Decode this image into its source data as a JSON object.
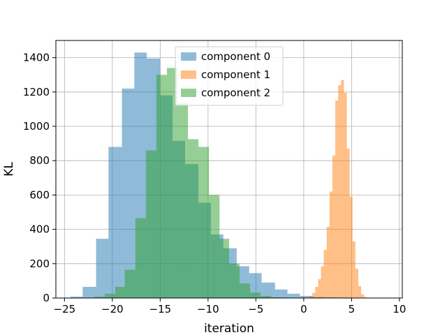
{
  "chart_data": {
    "type": "bar",
    "subtype": "overlaid-histogram",
    "xlabel": "iteration",
    "ylabel": "KL",
    "xlim": [
      -25.9,
      10.3
    ],
    "ylim": [
      0,
      1500
    ],
    "xticks": [
      -25,
      -20,
      -15,
      -10,
      -5,
      0,
      5,
      10
    ],
    "yticks": [
      0,
      200,
      400,
      600,
      800,
      1000,
      1200,
      1400
    ],
    "grid": true,
    "legend_position": "upper-center",
    "bar_alpha": 0.5,
    "series": [
      {
        "name": "component 0",
        "color": "#1f77b4",
        "bins": [
          {
            "x0": -24.4,
            "x1": -23.1,
            "count": 8
          },
          {
            "x0": -23.1,
            "x1": -21.7,
            "count": 65
          },
          {
            "x0": -21.7,
            "x1": -20.4,
            "count": 345
          },
          {
            "x0": -20.4,
            "x1": -19.0,
            "count": 880
          },
          {
            "x0": -19.0,
            "x1": -17.7,
            "count": 1220
          },
          {
            "x0": -17.7,
            "x1": -16.4,
            "count": 1430
          },
          {
            "x0": -16.4,
            "x1": -15.0,
            "count": 1395
          },
          {
            "x0": -15.0,
            "x1": -13.7,
            "count": 1180
          },
          {
            "x0": -13.7,
            "x1": -12.4,
            "count": 915
          },
          {
            "x0": -12.4,
            "x1": -11.0,
            "count": 780
          },
          {
            "x0": -11.0,
            "x1": -9.7,
            "count": 555
          },
          {
            "x0": -9.7,
            "x1": -8.4,
            "count": 370
          },
          {
            "x0": -8.4,
            "x1": -7.0,
            "count": 290
          },
          {
            "x0": -7.0,
            "x1": -5.7,
            "count": 185
          },
          {
            "x0": -5.7,
            "x1": -4.4,
            "count": 145
          },
          {
            "x0": -4.4,
            "x1": -3.0,
            "count": 90
          },
          {
            "x0": -3.0,
            "x1": -1.7,
            "count": 50
          },
          {
            "x0": -1.7,
            "x1": -0.4,
            "count": 25
          },
          {
            "x0": -0.4,
            "x1": 1.0,
            "count": 12
          },
          {
            "x0": 1.0,
            "x1": 2.3,
            "count": 6
          },
          {
            "x0": 2.3,
            "x1": 3.6,
            "count": 4
          },
          {
            "x0": 3.6,
            "x1": 5.0,
            "count": 3
          },
          {
            "x0": 5.0,
            "x1": 6.3,
            "count": 2
          },
          {
            "x0": 6.3,
            "x1": 7.6,
            "count": 1
          }
        ]
      },
      {
        "name": "component 1",
        "color": "#ff7f0e",
        "bins": [
          {
            "x0": 0.3,
            "x1": 0.6,
            "count": 4
          },
          {
            "x0": 0.6,
            "x1": 0.9,
            "count": 12
          },
          {
            "x0": 0.9,
            "x1": 1.2,
            "count": 30
          },
          {
            "x0": 1.2,
            "x1": 1.5,
            "count": 65
          },
          {
            "x0": 1.5,
            "x1": 1.8,
            "count": 110
          },
          {
            "x0": 1.8,
            "x1": 2.1,
            "count": 185
          },
          {
            "x0": 2.1,
            "x1": 2.4,
            "count": 280
          },
          {
            "x0": 2.4,
            "x1": 2.7,
            "count": 415
          },
          {
            "x0": 2.7,
            "x1": 3.0,
            "count": 620
          },
          {
            "x0": 3.0,
            "x1": 3.3,
            "count": 830
          },
          {
            "x0": 3.3,
            "x1": 3.6,
            "count": 1150
          },
          {
            "x0": 3.6,
            "x1": 3.9,
            "count": 1240
          },
          {
            "x0": 3.9,
            "x1": 4.2,
            "count": 1270
          },
          {
            "x0": 4.2,
            "x1": 4.5,
            "count": 1195
          },
          {
            "x0": 4.5,
            "x1": 4.8,
            "count": 870
          },
          {
            "x0": 4.8,
            "x1": 5.1,
            "count": 590
          },
          {
            "x0": 5.1,
            "x1": 5.4,
            "count": 330
          },
          {
            "x0": 5.4,
            "x1": 5.7,
            "count": 170
          },
          {
            "x0": 5.7,
            "x1": 6.0,
            "count": 70
          },
          {
            "x0": 6.0,
            "x1": 6.3,
            "count": 22
          },
          {
            "x0": 6.3,
            "x1": 6.6,
            "count": 6
          }
        ]
      },
      {
        "name": "component 2",
        "color": "#2ca02c",
        "bins": [
          {
            "x0": -21.9,
            "x1": -20.8,
            "count": 8
          },
          {
            "x0": -20.8,
            "x1": -19.7,
            "count": 25
          },
          {
            "x0": -19.7,
            "x1": -18.7,
            "count": 65
          },
          {
            "x0": -18.7,
            "x1": -17.6,
            "count": 165
          },
          {
            "x0": -17.6,
            "x1": -16.5,
            "count": 465
          },
          {
            "x0": -16.5,
            "x1": -15.4,
            "count": 860
          },
          {
            "x0": -15.4,
            "x1": -14.3,
            "count": 1300
          },
          {
            "x0": -14.3,
            "x1": -13.2,
            "count": 1340
          },
          {
            "x0": -13.2,
            "x1": -12.1,
            "count": 1135
          },
          {
            "x0": -12.1,
            "x1": -11.0,
            "count": 925
          },
          {
            "x0": -11.0,
            "x1": -9.9,
            "count": 880
          },
          {
            "x0": -9.9,
            "x1": -8.8,
            "count": 600
          },
          {
            "x0": -8.8,
            "x1": -7.8,
            "count": 345
          },
          {
            "x0": -7.8,
            "x1": -6.7,
            "count": 200
          },
          {
            "x0": -6.7,
            "x1": -5.6,
            "count": 85
          },
          {
            "x0": -5.6,
            "x1": -4.5,
            "count": 32
          },
          {
            "x0": -4.5,
            "x1": -3.4,
            "count": 12
          },
          {
            "x0": -3.4,
            "x1": -2.3,
            "count": 4
          }
        ]
      }
    ]
  }
}
